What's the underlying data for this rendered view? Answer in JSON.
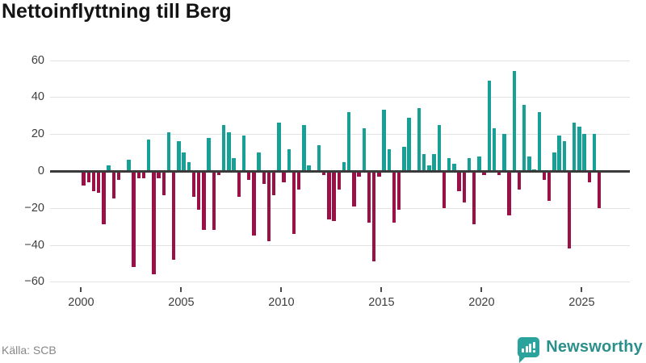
{
  "title": "Nettoinflyttning till Berg",
  "source": {
    "label": "Källa: SCB"
  },
  "brand": {
    "name": "Newsworthy",
    "icon": "newsworthy-bubble-chart-icon",
    "color": "#2b8f8c"
  },
  "chart_data": {
    "type": "bar",
    "title": "Nettoinflyttning till Berg",
    "frequency": "quarterly",
    "start_year": 2000,
    "periods_per_year": 4,
    "values": [
      -8,
      -6,
      -11,
      -12,
      -29,
      3,
      -15,
      -5,
      -1,
      6,
      -52,
      -4,
      -4,
      17,
      -56,
      -4,
      -13,
      21,
      -48,
      16,
      10,
      5,
      -14,
      -21,
      -32,
      18,
      -32,
      -2,
      25,
      21,
      7,
      -14,
      19,
      -5,
      -35,
      10,
      -7,
      -38,
      -13,
      26,
      -6,
      12,
      -34,
      -10,
      25,
      3,
      -1,
      14,
      -2,
      -26,
      -27,
      -10,
      5,
      32,
      -19,
      -3,
      23,
      -28,
      -49,
      -3,
      33,
      12,
      -28,
      -21,
      13,
      29,
      -1,
      34,
      9,
      3,
      9,
      25,
      -20,
      7,
      4,
      -11,
      -17,
      7,
      -29,
      8,
      -2,
      49,
      23,
      -2,
      20,
      -24,
      54,
      -10,
      36,
      8,
      1,
      32,
      -5,
      -16,
      10,
      19,
      16,
      -42,
      26,
      24,
      20,
      -6,
      20,
      -20
    ],
    "ylim": [
      -60,
      60
    ],
    "yticks": [
      60,
      40,
      20,
      0,
      -20,
      -40,
      -60
    ],
    "xticks": [
      2000,
      2005,
      2010,
      2015,
      2020,
      2025
    ],
    "grid": true,
    "legend": "none",
    "colors": {
      "positive": "#17a096",
      "negative": "#9c1048"
    }
  }
}
